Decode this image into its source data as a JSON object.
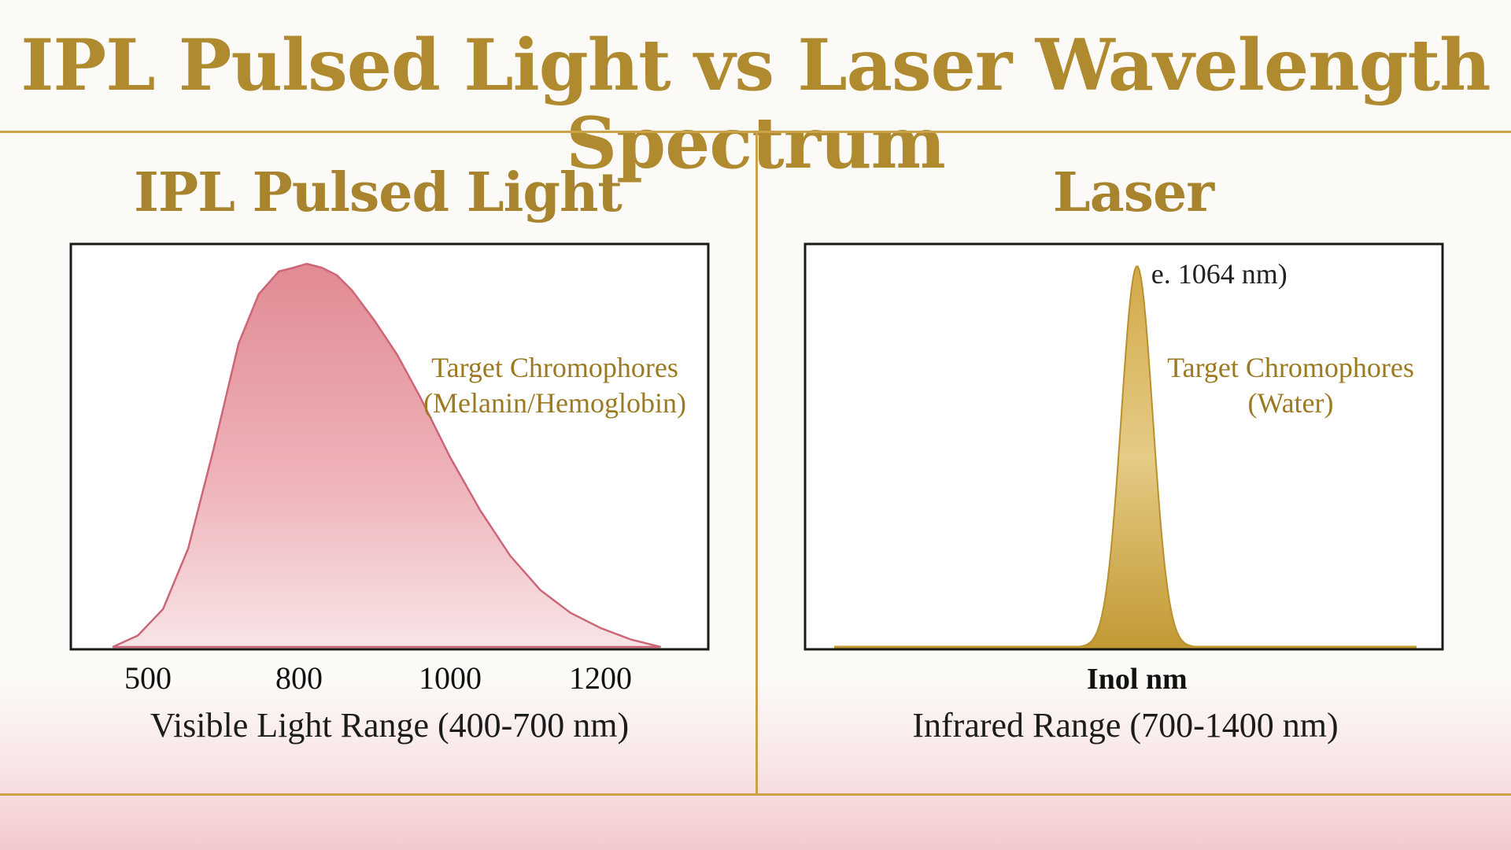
{
  "title": "IPL Pulsed Light vs Laser Wavelength Spectrum",
  "chart_data": [
    {
      "type": "area",
      "title": "IPL Pulsed Light",
      "xlabel": "Visible Light Range (400-700 nm)",
      "x_ticks": [
        500,
        800,
        1000,
        1200
      ],
      "xlim": [
        400,
        1300
      ],
      "ylim": [
        0,
        1
      ],
      "x": [
        430,
        480,
        530,
        580,
        630,
        680,
        720,
        760,
        790,
        810,
        830,
        850,
        870,
        900,
        930,
        960,
        1000,
        1040,
        1080,
        1120,
        1160,
        1200,
        1240,
        1280
      ],
      "values": [
        0.0,
        0.03,
        0.1,
        0.26,
        0.52,
        0.8,
        0.93,
        0.99,
        1.0,
        1.01,
        1.0,
        0.98,
        0.94,
        0.86,
        0.77,
        0.66,
        0.5,
        0.36,
        0.24,
        0.15,
        0.09,
        0.05,
        0.02,
        0.0
      ],
      "annotation": [
        "Target Chromophores",
        "(Melanin/Hemoglobin)"
      ],
      "color": "#d47a84"
    },
    {
      "type": "area",
      "title": "Laser",
      "xlabel": "Infrared Range (700-1400 nm)",
      "x_tick_label": "Inol nm",
      "peak_label": "e. 1064 nm)",
      "peak_x": 1064,
      "xlim": [
        700,
        1400
      ],
      "ylim": [
        0,
        1
      ],
      "annotation": [
        "Target Chromophores",
        "(Water)"
      ],
      "color": "#c49a2e"
    }
  ]
}
